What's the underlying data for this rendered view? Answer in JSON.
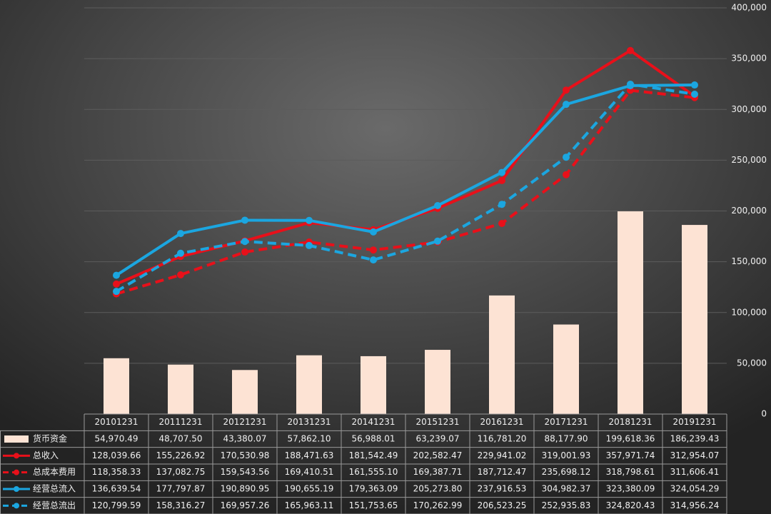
{
  "chart_data": {
    "type": "combo",
    "categories": [
      "20101231",
      "20111231",
      "20121231",
      "20131231",
      "20141231",
      "20151231",
      "20161231",
      "20171231",
      "20181231",
      "20191231"
    ],
    "series": [
      {
        "name": "货币资金",
        "type": "bar",
        "color": "#fde3d4",
        "dashed": false,
        "values": [
          54970.49,
          48707.5,
          43380.07,
          57862.1,
          56988.01,
          63239.07,
          116781.2,
          88177.9,
          199618.36,
          186239.43
        ],
        "value_labels": [
          "54,970.49",
          "48,707.50",
          "43,380.07",
          "57,862.10",
          "56,988.01",
          "63,239.07",
          "116,781.20",
          "88,177.90",
          "199,618.36",
          "186,239.43"
        ]
      },
      {
        "name": "总收入",
        "type": "line",
        "color": "#e8101a",
        "dashed": false,
        "values": [
          128039.66,
          155226.92,
          170530.98,
          188471.63,
          181542.49,
          202582.47,
          229941.02,
          319001.93,
          357971.74,
          312954.07
        ],
        "value_labels": [
          "128,039.66",
          "155,226.92",
          "170,530.98",
          "188,471.63",
          "181,542.49",
          "202,582.47",
          "229,941.02",
          "319,001.93",
          "357,971.74",
          "312,954.07"
        ]
      },
      {
        "name": "总成本费用",
        "type": "line",
        "color": "#e8101a",
        "dashed": true,
        "values": [
          118358.33,
          137082.75,
          159543.56,
          169410.51,
          161555.1,
          169387.71,
          187712.47,
          235698.12,
          318798.61,
          311606.41
        ],
        "value_labels": [
          "118,358.33",
          "137,082.75",
          "159,543.56",
          "169,410.51",
          "161,555.10",
          "169,387.71",
          "187,712.47",
          "235,698.12",
          "318,798.61",
          "311,606.41"
        ]
      },
      {
        "name": "经营总流入",
        "type": "line",
        "color": "#1ba6e0",
        "dashed": false,
        "values": [
          136639.54,
          177797.87,
          190890.95,
          190655.19,
          179363.09,
          205273.8,
          237916.53,
          304982.37,
          323380.09,
          324054.29
        ],
        "value_labels": [
          "136,639.54",
          "177,797.87",
          "190,890.95",
          "190,655.19",
          "179,363.09",
          "205,273.80",
          "237,916.53",
          "304,982.37",
          "323,380.09",
          "324,054.29"
        ]
      },
      {
        "name": "经营总流出",
        "type": "line",
        "color": "#1ba6e0",
        "dashed": true,
        "values": [
          120799.59,
          158316.27,
          169957.26,
          165963.11,
          151753.65,
          170262.99,
          206523.25,
          252935.83,
          324820.43,
          314956.24
        ],
        "value_labels": [
          "120,799.59",
          "158,316.27",
          "169,957.26",
          "165,963.11",
          "151,753.65",
          "170,262.99",
          "206,523.25",
          "252,935.83",
          "324,820.43",
          "314,956.24"
        ]
      }
    ],
    "ylim": [
      0,
      400000
    ],
    "yticks": [
      0,
      {
        "value": 50000,
        "label": "50,000"
      },
      {
        "value": 100000,
        "label": "100,000"
      },
      {
        "value": 150000,
        "label": "150,000"
      },
      {
        "value": 200000,
        "label": "200,000"
      },
      {
        "value": 250000,
        "label": "250,000"
      },
      {
        "value": 300000,
        "label": "300,000"
      },
      {
        "value": 350000,
        "label": "350,000"
      },
      {
        "value": 400000,
        "label": "400,000"
      }
    ],
    "grid": true
  }
}
